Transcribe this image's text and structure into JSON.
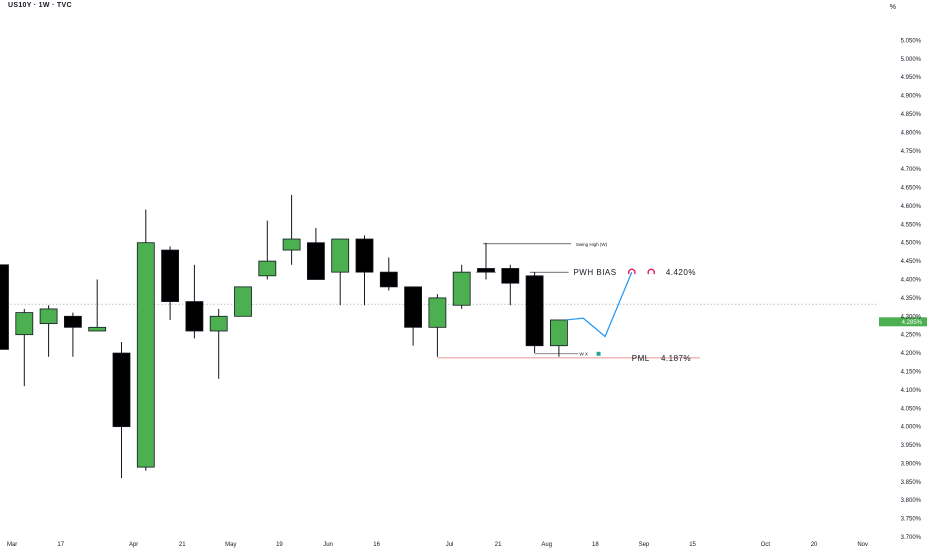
{
  "header": {
    "symbol": "US10Y · 1W · TVC",
    "unit": "%"
  },
  "chart_data": {
    "type": "candlestick",
    "ylim": [
      3.7,
      5.1
    ],
    "y_ticks": [
      5.05,
      5.0,
      4.95,
      4.9,
      4.85,
      4.8,
      4.75,
      4.7,
      4.65,
      4.6,
      4.55,
      4.5,
      4.45,
      4.4,
      4.35,
      4.3,
      4.25,
      4.2,
      4.15,
      4.1,
      4.05,
      4.0,
      3.95,
      3.9,
      3.85,
      3.8,
      3.75,
      3.7
    ],
    "y_tick_labels": [
      "5.050%",
      "5.000%",
      "4.950%",
      "4.900%",
      "4.850%",
      "4.800%",
      "4.750%",
      "4.700%",
      "4.650%",
      "4.600%",
      "4.550%",
      "4.500%",
      "4.450%",
      "4.400%",
      "4.350%",
      "4.300%",
      "4.250%",
      "4.200%",
      "4.150%",
      "4.100%",
      "4.050%",
      "4.000%",
      "3.950%",
      "3.900%",
      "3.850%",
      "3.800%",
      "3.750%",
      "3.700%"
    ],
    "x_ticks": [
      {
        "label": "Mar",
        "i": 0.5
      },
      {
        "label": "17",
        "i": 2.5
      },
      {
        "label": "Apr",
        "i": 5.5
      },
      {
        "label": "21",
        "i": 7.5
      },
      {
        "label": "May",
        "i": 9.5
      },
      {
        "label": "19",
        "i": 11.5
      },
      {
        "label": "Jun",
        "i": 13.5
      },
      {
        "label": "16",
        "i": 15.5
      },
      {
        "label": "Jul",
        "i": 18.5
      },
      {
        "label": "21",
        "i": 20.5
      },
      {
        "label": "Aug",
        "i": 22.5
      },
      {
        "label": "18",
        "i": 24.5
      },
      {
        "label": "Sep",
        "i": 26.5
      },
      {
        "label": "15",
        "i": 28.5
      },
      {
        "label": "Oct",
        "i": 31.5
      },
      {
        "label": "20",
        "i": 33.5
      },
      {
        "label": "Nov",
        "i": 35.5
      }
    ],
    "candles": [
      {
        "o": 4.44,
        "h": 4.44,
        "l": 4.21,
        "c": 4.21
      },
      {
        "o": 4.25,
        "h": 4.32,
        "l": 4.11,
        "c": 4.31
      },
      {
        "o": 4.28,
        "h": 4.33,
        "l": 4.19,
        "c": 4.32
      },
      {
        "o": 4.3,
        "h": 4.31,
        "l": 4.19,
        "c": 4.27
      },
      {
        "o": 4.26,
        "h": 4.4,
        "l": 4.26,
        "c": 4.27
      },
      {
        "o": 4.2,
        "h": 4.23,
        "l": 3.86,
        "c": 4.0
      },
      {
        "o": 3.89,
        "h": 4.59,
        "l": 3.88,
        "c": 4.5
      },
      {
        "o": 4.48,
        "h": 4.49,
        "l": 4.29,
        "c": 4.34
      },
      {
        "o": 4.34,
        "h": 4.44,
        "l": 4.24,
        "c": 4.26
      },
      {
        "o": 4.26,
        "h": 4.32,
        "l": 4.13,
        "c": 4.3
      },
      {
        "o": 4.3,
        "h": 4.38,
        "l": 4.3,
        "c": 4.38
      },
      {
        "o": 4.41,
        "h": 4.56,
        "l": 4.4,
        "c": 4.45
      },
      {
        "o": 4.48,
        "h": 4.63,
        "l": 4.44,
        "c": 4.51
      },
      {
        "o": 4.5,
        "h": 4.54,
        "l": 4.4,
        "c": 4.4
      },
      {
        "o": 4.42,
        "h": 4.51,
        "l": 4.33,
        "c": 4.51
      },
      {
        "o": 4.51,
        "h": 4.52,
        "l": 4.33,
        "c": 4.42
      },
      {
        "o": 4.42,
        "h": 4.46,
        "l": 4.37,
        "c": 4.38
      },
      {
        "o": 4.38,
        "h": 4.38,
        "l": 4.22,
        "c": 4.27
      },
      {
        "o": 4.27,
        "h": 4.36,
        "l": 4.19,
        "c": 4.35
      },
      {
        "o": 4.33,
        "h": 4.44,
        "l": 4.32,
        "c": 4.42
      },
      {
        "o": 4.43,
        "h": 4.5,
        "l": 4.4,
        "c": 4.42
      },
      {
        "o": 4.43,
        "h": 4.44,
        "l": 4.33,
        "c": 4.39
      },
      {
        "o": 4.41,
        "h": 4.42,
        "l": 4.2,
        "c": 4.22
      },
      {
        "o": 4.22,
        "h": 4.29,
        "l": 4.19,
        "c": 4.29
      }
    ],
    "colors": {
      "up": "#4caf50",
      "down": "#000000",
      "projection": "#2196f3",
      "pml_line": "#e57373",
      "current_label_bg": "#4caf50"
    },
    "current_price": {
      "value": 4.285,
      "label": "4.285%"
    },
    "dotted_level": 4.333,
    "annotations": {
      "swing_high": {
        "label": "Swing High (W)",
        "value": 4.497
      },
      "pwh_bias": {
        "label": "PWH BIAS",
        "value_label": "4.420%",
        "value": 4.42
      },
      "pml": {
        "label": "PML",
        "value_label": "4.187%",
        "value": 4.187
      },
      "w_mark": {
        "label": "W X"
      }
    },
    "projection_path": [
      {
        "i": 23.3,
        "v": 4.29
      },
      {
        "i": 24.0,
        "v": 4.295
      },
      {
        "i": 24.9,
        "v": 4.245
      },
      {
        "i": 26.0,
        "v": 4.42
      }
    ]
  }
}
